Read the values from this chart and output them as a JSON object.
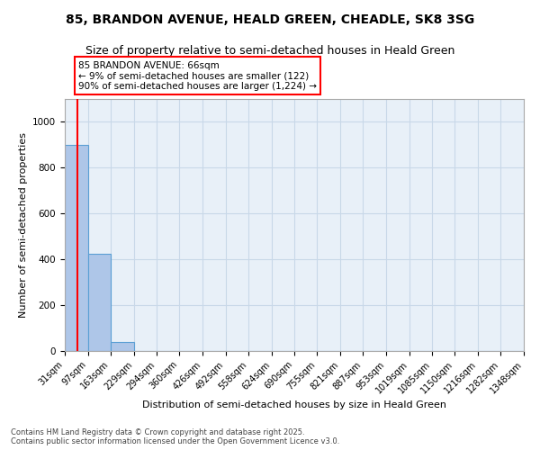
{
  "title": "85, BRANDON AVENUE, HEALD GREEN, CHEADLE, SK8 3SG",
  "subtitle": "Size of property relative to semi-detached houses in Heald Green",
  "xlabel": "Distribution of semi-detached houses by size in Heald Green",
  "ylabel": "Number of semi-detached properties",
  "bin_edges": [
    31,
    97,
    163,
    229,
    294,
    360,
    426,
    492,
    558,
    624,
    690,
    755,
    821,
    887,
    953,
    1019,
    1085,
    1150,
    1216,
    1282,
    1348
  ],
  "bar_heights": [
    900,
    425,
    40,
    0,
    0,
    0,
    0,
    0,
    0,
    0,
    0,
    0,
    0,
    0,
    0,
    0,
    0,
    0,
    0,
    0
  ],
  "bar_color": "#aec6e8",
  "bar_edge_color": "#5a9fd4",
  "red_line_x": 66,
  "annotation_text": "85 BRANDON AVENUE: 66sqm\n← 9% of semi-detached houses are smaller (122)\n90% of semi-detached houses are larger (1,224) →",
  "ylim": [
    0,
    1100
  ],
  "yticks": [
    0,
    200,
    400,
    600,
    800,
    1000
  ],
  "background_color": "#e8f0f8",
  "grid_color": "#c8d8e8",
  "footer_line1": "Contains HM Land Registry data © Crown copyright and database right 2025.",
  "footer_line2": "Contains public sector information licensed under the Open Government Licence v3.0.",
  "title_fontsize": 10,
  "subtitle_fontsize": 9,
  "tick_fontsize": 7,
  "ylabel_fontsize": 8,
  "xlabel_fontsize": 8,
  "footer_fontsize": 6
}
